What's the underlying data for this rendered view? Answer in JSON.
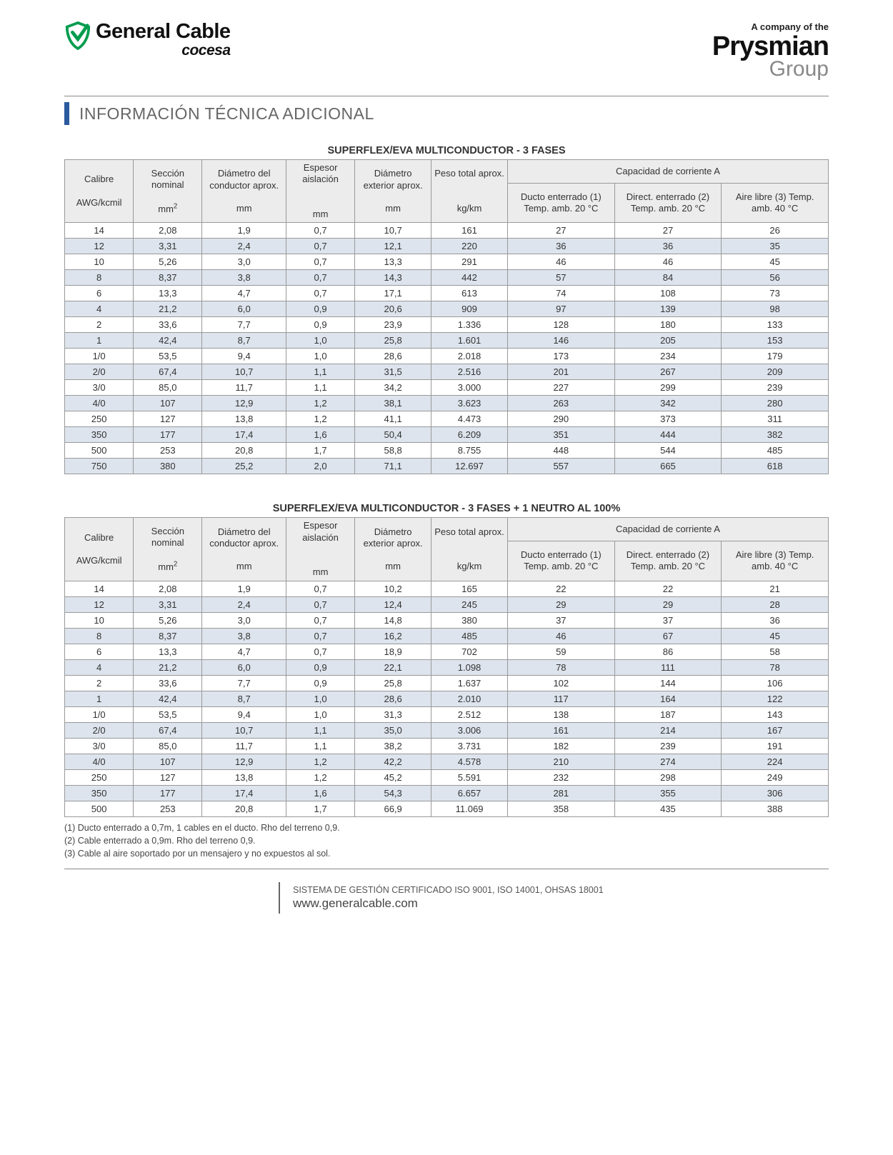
{
  "header": {
    "company_of": "A company of the",
    "gc_name": "General Cable",
    "gc_sub": "cocesa",
    "prysmian": "Prysmian",
    "prysmian_group": "Group",
    "shield_color": "#009c4e"
  },
  "section_title": "INFORMACIÓN TÉCNICA ADICIONAL",
  "table_common": {
    "col_calibre": "Calibre",
    "col_seccion": "Sección nominal",
    "col_diam_cond": "Diámetro del conductor aprox.",
    "col_espesor": "Espesor aislación",
    "col_diam_ext": "Diámetro exterior aprox.",
    "col_peso": "Peso total aprox.",
    "col_capacidad": "Capacidad de corriente A",
    "col_ducto": "Ducto enterrado (1) Temp. amb. 20 °C",
    "col_direct": "Direct. enterrado (2) Temp. amb. 20 °C",
    "col_aire": "Aire libre (3) Temp. amb. 40 °C",
    "u_awg": "AWG/kcmil",
    "u_mm2": "mm²",
    "u_mm": "mm",
    "u_kgkm": "kg/km"
  },
  "table1": {
    "title": "SUPERFLEX/EVA MULTICONDUCTOR - 3 FASES",
    "rows": [
      [
        "14",
        "2,08",
        "1,9",
        "0,7",
        "10,7",
        "161",
        "27",
        "27",
        "26"
      ],
      [
        "12",
        "3,31",
        "2,4",
        "0,7",
        "12,1",
        "220",
        "36",
        "36",
        "35"
      ],
      [
        "10",
        "5,26",
        "3,0",
        "0,7",
        "13,3",
        "291",
        "46",
        "46",
        "45"
      ],
      [
        "8",
        "8,37",
        "3,8",
        "0,7",
        "14,3",
        "442",
        "57",
        "84",
        "56"
      ],
      [
        "6",
        "13,3",
        "4,7",
        "0,7",
        "17,1",
        "613",
        "74",
        "108",
        "73"
      ],
      [
        "4",
        "21,2",
        "6,0",
        "0,9",
        "20,6",
        "909",
        "97",
        "139",
        "98"
      ],
      [
        "2",
        "33,6",
        "7,7",
        "0,9",
        "23,9",
        "1.336",
        "128",
        "180",
        "133"
      ],
      [
        "1",
        "42,4",
        "8,7",
        "1,0",
        "25,8",
        "1.601",
        "146",
        "205",
        "153"
      ],
      [
        "1/0",
        "53,5",
        "9,4",
        "1,0",
        "28,6",
        "2.018",
        "173",
        "234",
        "179"
      ],
      [
        "2/0",
        "67,4",
        "10,7",
        "1,1",
        "31,5",
        "2.516",
        "201",
        "267",
        "209"
      ],
      [
        "3/0",
        "85,0",
        "11,7",
        "1,1",
        "34,2",
        "3.000",
        "227",
        "299",
        "239"
      ],
      [
        "4/0",
        "107",
        "12,9",
        "1,2",
        "38,1",
        "3.623",
        "263",
        "342",
        "280"
      ],
      [
        "250",
        "127",
        "13,8",
        "1,2",
        "41,1",
        "4.473",
        "290",
        "373",
        "311"
      ],
      [
        "350",
        "177",
        "17,4",
        "1,6",
        "50,4",
        "6.209",
        "351",
        "444",
        "382"
      ],
      [
        "500",
        "253",
        "20,8",
        "1,7",
        "58,8",
        "8.755",
        "448",
        "544",
        "485"
      ],
      [
        "750",
        "380",
        "25,2",
        "2,0",
        "71,1",
        "12.697",
        "557",
        "665",
        "618"
      ]
    ]
  },
  "table2": {
    "title": "SUPERFLEX/EVA MULTICONDUCTOR - 3 FASES + 1 NEUTRO AL 100%",
    "rows": [
      [
        "14",
        "2,08",
        "1,9",
        "0,7",
        "10,2",
        "165",
        "22",
        "22",
        "21"
      ],
      [
        "12",
        "3,31",
        "2,4",
        "0,7",
        "12,4",
        "245",
        "29",
        "29",
        "28"
      ],
      [
        "10",
        "5,26",
        "3,0",
        "0,7",
        "14,8",
        "380",
        "37",
        "37",
        "36"
      ],
      [
        "8",
        "8,37",
        "3,8",
        "0,7",
        "16,2",
        "485",
        "46",
        "67",
        "45"
      ],
      [
        "6",
        "13,3",
        "4,7",
        "0,7",
        "18,9",
        "702",
        "59",
        "86",
        "58"
      ],
      [
        "4",
        "21,2",
        "6,0",
        "0,9",
        "22,1",
        "1.098",
        "78",
        "111",
        "78"
      ],
      [
        "2",
        "33,6",
        "7,7",
        "0,9",
        "25,8",
        "1.637",
        "102",
        "144",
        "106"
      ],
      [
        "1",
        "42,4",
        "8,7",
        "1,0",
        "28,6",
        "2.010",
        "117",
        "164",
        "122"
      ],
      [
        "1/0",
        "53,5",
        "9,4",
        "1,0",
        "31,3",
        "2.512",
        "138",
        "187",
        "143"
      ],
      [
        "2/0",
        "67,4",
        "10,7",
        "1,1",
        "35,0",
        "3.006",
        "161",
        "214",
        "167"
      ],
      [
        "3/0",
        "85,0",
        "11,7",
        "1,1",
        "38,2",
        "3.731",
        "182",
        "239",
        "191"
      ],
      [
        "4/0",
        "107",
        "12,9",
        "1,2",
        "42,2",
        "4.578",
        "210",
        "274",
        "224"
      ],
      [
        "250",
        "127",
        "13,8",
        "1,2",
        "45,2",
        "5.591",
        "232",
        "298",
        "249"
      ],
      [
        "350",
        "177",
        "17,4",
        "1,6",
        "54,3",
        "6.657",
        "281",
        "355",
        "306"
      ],
      [
        "500",
        "253",
        "20,8",
        "1,7",
        "66,9",
        "11.069",
        "358",
        "435",
        "388"
      ]
    ]
  },
  "notes": [
    "(1) Ducto enterrado a 0,7m, 1 cables en el ducto. Rho del terreno 0,9.",
    "(2) Cable enterrado a 0,9m. Rho del terreno 0,9.",
    "(3) Cable al aire soportado por un mensajero y no expuestos al sol."
  ],
  "footer": {
    "iso": "SISTEMA DE GESTIÓN CERTIFICADO ISO 9001, ISO 14001, OHSAS 18001",
    "url": "www.generalcable.com"
  }
}
